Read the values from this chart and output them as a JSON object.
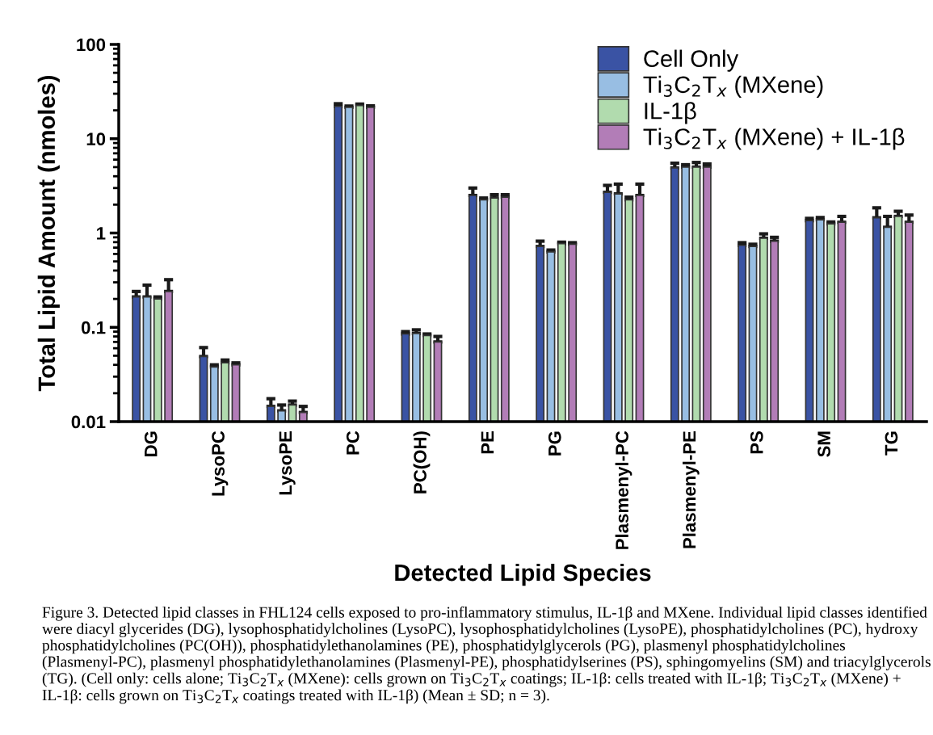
{
  "chart_data": {
    "type": "bar",
    "xlabel": "Detected Lipid Species",
    "ylabel": "Total Lipid Amount (nmoles)",
    "categories": [
      "DG",
      "LysoPC",
      "LysoPE",
      "PC",
      "PC(OH)",
      "PE",
      "PG",
      "Plasmenyl-PC",
      "Plasmenyl-PE",
      "PS",
      "SM",
      "TG"
    ],
    "series": [
      {
        "name": "Cell Only",
        "color": "#3a53a4",
        "values": [
          0.21,
          0.049,
          0.0145,
          22,
          0.085,
          2.5,
          0.72,
          2.7,
          4.9,
          0.74,
          1.35,
          1.45
        ],
        "errors": [
          [
            0.21,
            0.24
          ],
          [
            0.049,
            0.061
          ],
          [
            0.0145,
            0.0175
          ],
          [
            22,
            23.5
          ],
          [
            0.085,
            0.09
          ],
          [
            2.5,
            3.0
          ],
          [
            0.72,
            0.82
          ],
          [
            2.7,
            3.2
          ],
          [
            4.9,
            5.5
          ],
          [
            0.74,
            0.79
          ],
          [
            1.35,
            1.43
          ],
          [
            1.45,
            1.85
          ]
        ]
      },
      {
        "name": "Ti$_{3}$C$_{2}$T$_{x}$ (MXene)",
        "color": "#98bee3",
        "values": [
          0.21,
          0.038,
          0.013,
          21.5,
          0.086,
          2.25,
          0.63,
          2.6,
          5.0,
          0.72,
          1.38,
          1.15
        ],
        "errors": [
          [
            0.21,
            0.28
          ],
          [
            0.038,
            0.04
          ],
          [
            0.013,
            0.015
          ],
          [
            21.5,
            22.2
          ],
          [
            0.086,
            0.094
          ],
          [
            2.25,
            2.35
          ],
          [
            0.63,
            0.66
          ],
          [
            2.6,
            3.3
          ],
          [
            5.0,
            5.3
          ],
          [
            0.72,
            0.76
          ],
          [
            1.38,
            1.46
          ],
          [
            1.15,
            1.5
          ]
        ]
      },
      {
        "name": "IL-1β",
        "color": "#b1dbae",
        "values": [
          0.2,
          0.042,
          0.015,
          22.5,
          0.082,
          2.35,
          0.77,
          2.25,
          5.0,
          0.88,
          1.25,
          1.5
        ],
        "errors": [
          [
            0.2,
            0.21
          ],
          [
            0.042,
            0.045
          ],
          [
            0.015,
            0.0165
          ],
          [
            22.5,
            23.3
          ],
          [
            0.082,
            0.085
          ],
          [
            2.35,
            2.55
          ],
          [
            0.77,
            0.8
          ],
          [
            2.25,
            2.4
          ],
          [
            5.0,
            5.6
          ],
          [
            0.88,
            0.98
          ],
          [
            1.25,
            1.31
          ],
          [
            1.5,
            1.7
          ]
        ]
      },
      {
        "name": "Ti$_{3}$C$_{2}$T$_{x}$ (MXene) + IL-1β",
        "color": "#b27db7",
        "values": [
          0.24,
          0.04,
          0.0125,
          21.5,
          0.07,
          2.4,
          0.76,
          2.5,
          5.0,
          0.82,
          1.3,
          1.3
        ],
        "errors": [
          [
            0.24,
            0.32
          ],
          [
            0.04,
            0.042
          ],
          [
            0.0125,
            0.0145
          ],
          [
            21.5,
            22.3
          ],
          [
            0.07,
            0.08
          ],
          [
            2.4,
            2.55
          ],
          [
            0.76,
            0.79
          ],
          [
            2.5,
            3.3
          ],
          [
            5.0,
            5.4
          ],
          [
            0.82,
            0.9
          ],
          [
            1.3,
            1.5
          ],
          [
            1.3,
            1.55
          ]
        ]
      }
    ],
    "log": true,
    "ylim": [
      0.01,
      100
    ],
    "yticks": [
      0.01,
      0.1,
      1,
      10,
      100
    ],
    "legend": "top right",
    "grid": false,
    "annotations": [
      "Figure 3. Detected lipid classes in FHL124 cells exposed to pro-inflammatory stimulus, IL-1β and MXene. Individual lipid classes identified were diacyl glycerides (DG), lysophosphatidylcholines (LysoPC), lysophosphatidylcholines (LysoPE), phosphatidylcholines (PC), hydroxy phosphatidylcholines (PC(OH)), phosphatidylethanolamines (PE), phosphatidylglycerols (PG), plasmenyl phosphatidylcholines (Plasmenyl-PC), plasmenyl phosphatidylethanolamines (Plasmenyl-PE), phosphatidylserines (PS), sphingomyelins (SM) and triacylglycerols (TG). (Cell only: cells alone; Ti$_{3}$C$_{2}$T$_{x}$ (MXene): cells grown on Ti$_{3}$C$_{2}$T$_{x}$ coatings; IL-1β: cells treated with IL-1β; Ti$_{3}$C$_{2}$T$_{x}$ (MXene) + IL-1β: cells grown on Ti$_{3}$C$_{2}$T$_{x}$ coatings treated with IL-1β) (Mean ± SD; n = 3)."
    ]
  }
}
